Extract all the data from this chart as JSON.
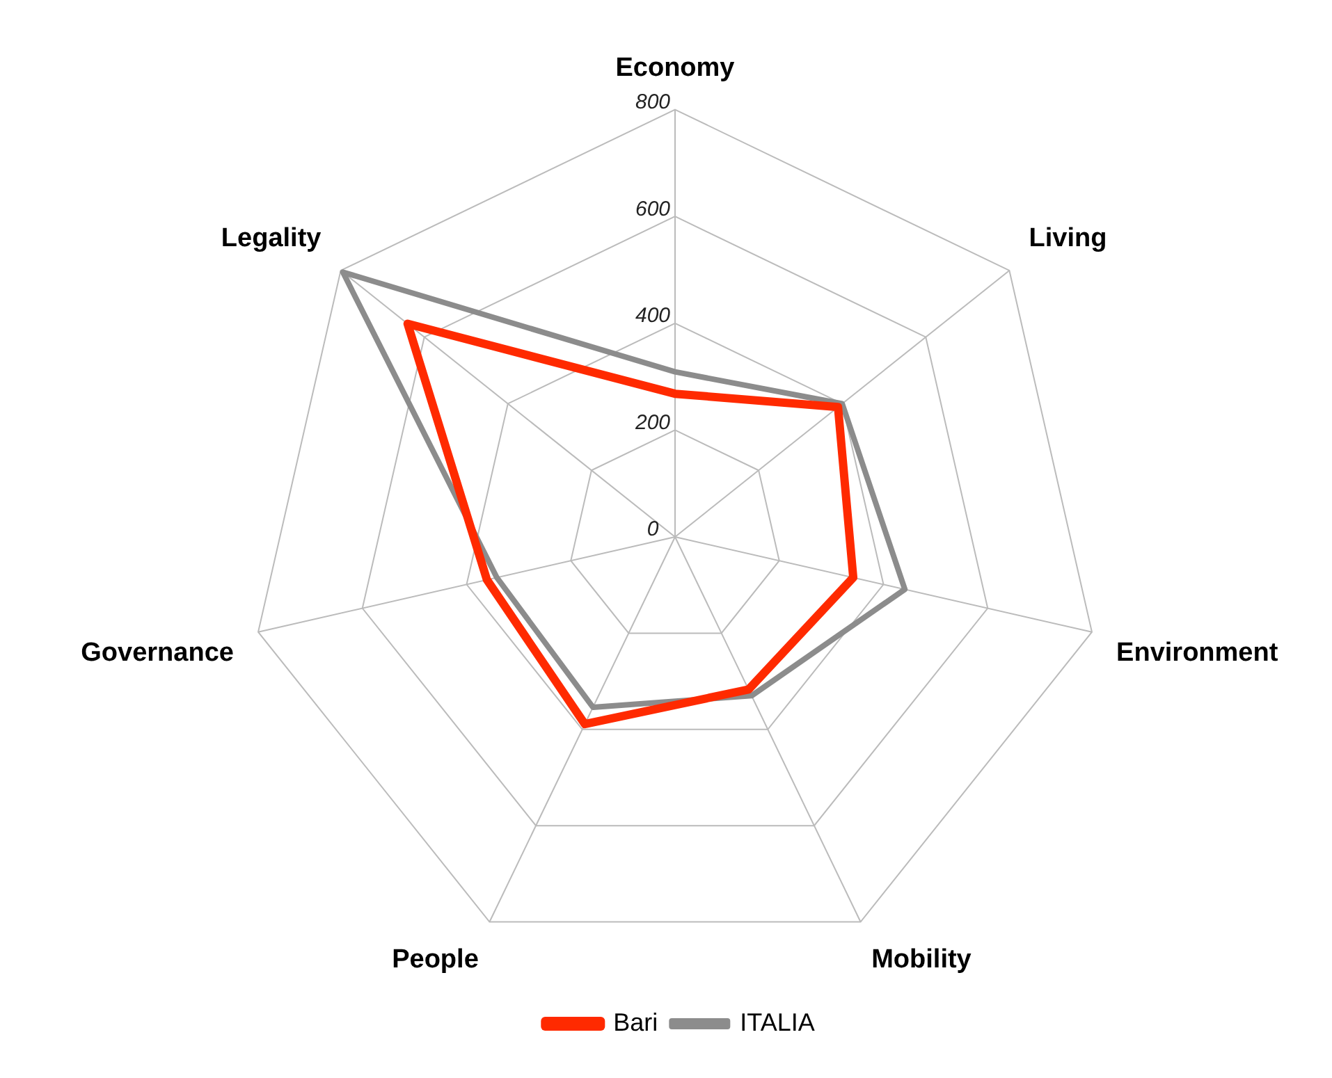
{
  "chart_data": {
    "type": "radar",
    "categories": [
      "Economy",
      "Living",
      "Environment",
      "Mobility",
      "People",
      "Governance",
      "Legality"
    ],
    "series": [
      {
        "name": "Bari",
        "color": "#ff2a00",
        "values": [
          268,
          390,
          342,
          317,
          389,
          361,
          640
        ]
      },
      {
        "name": "ITALIA",
        "color": "#8c8c8c",
        "values": [
          309,
          400,
          441,
          330,
          354,
          342,
          795
        ]
      }
    ],
    "ylim": [
      0,
      800
    ],
    "yticks": [
      0,
      200,
      400,
      600,
      800
    ],
    "grid": true,
    "legend": "bottom",
    "marker": "none",
    "line_style": "solid"
  }
}
